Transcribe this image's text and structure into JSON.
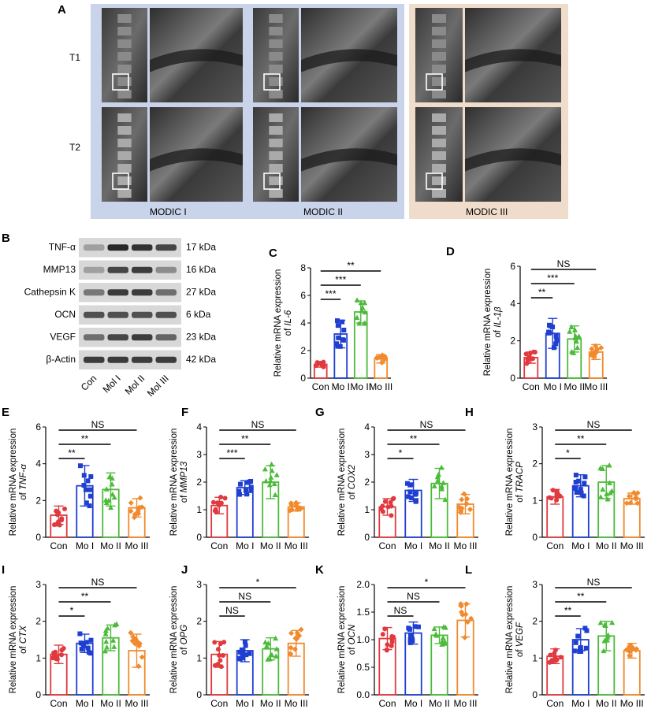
{
  "panel_a": {
    "label": "A",
    "row_labels": [
      "T1",
      "T2"
    ],
    "group_labels": [
      "MODIC I",
      "MODIC II",
      "MODIC III"
    ],
    "colors": {
      "modic_bg_blue": "#c9d3ea",
      "modic_bg_peach": "#f0dccb"
    }
  },
  "panel_b": {
    "label": "B",
    "proteins": [
      {
        "name": "TNF-α",
        "kda": "17 kDa",
        "intensity": [
          0.35,
          0.95,
          0.9,
          0.8
        ]
      },
      {
        "name": "MMP13",
        "kda": "16 kDa",
        "intensity": [
          0.35,
          0.8,
          0.85,
          0.45
        ]
      },
      {
        "name": "Cathepsin K",
        "kda": "27 kDa",
        "intensity": [
          0.55,
          0.85,
          0.85,
          0.6
        ]
      },
      {
        "name": "OCN",
        "kda": "6 kDa",
        "intensity": [
          0.75,
          0.75,
          0.75,
          0.75
        ]
      },
      {
        "name": "VEGF",
        "kda": "23 kDa",
        "intensity": [
          0.6,
          0.8,
          0.85,
          0.65
        ]
      },
      {
        "name": "β-Actin",
        "kda": "42 kDa",
        "intensity": [
          0.85,
          0.85,
          0.85,
          0.85
        ]
      }
    ],
    "lanes": [
      "Con",
      "Mol I",
      "Mol II",
      "Mol III"
    ]
  },
  "chart_data": [
    {
      "panel": "C",
      "type": "bar",
      "ylabel_top": "Relative mRNA expression",
      "ylabel_gene": "IL-6",
      "categories": [
        "Con",
        "Mo I",
        "Mo II",
        "Mo III"
      ],
      "ylim": [
        0,
        8
      ],
      "yticks": [
        "0",
        "2",
        "4",
        "6",
        "8"
      ],
      "means": [
        1.0,
        3.2,
        4.8,
        1.4
      ],
      "sd": [
        0.2,
        1.0,
        0.8,
        0.3
      ],
      "sig": [
        {
          "from": 0,
          "to": 1,
          "text": "***"
        },
        {
          "from": 0,
          "to": 2,
          "text": "***"
        },
        {
          "from": 0,
          "to": 3,
          "text": "**"
        }
      ]
    },
    {
      "panel": "D",
      "type": "bar",
      "ylabel_top": "Relative mRNA expression",
      "ylabel_gene": "IL-1β",
      "categories": [
        "Con",
        "Mo I",
        "Mo II",
        "Mo III"
      ],
      "ylim": [
        0,
        6
      ],
      "yticks": [
        "0",
        "2",
        "4",
        "6"
      ],
      "means": [
        1.1,
        2.4,
        2.1,
        1.4
      ],
      "sd": [
        0.3,
        0.8,
        0.7,
        0.4
      ],
      "sig": [
        {
          "from": 0,
          "to": 1,
          "text": "**"
        },
        {
          "from": 0,
          "to": 2,
          "text": "***"
        },
        {
          "from": 0,
          "to": 3,
          "text": "NS"
        }
      ]
    },
    {
      "panel": "E",
      "type": "bar",
      "ylabel_top": "Relative mRNA expression",
      "ylabel_gene": "TNF-α",
      "categories": [
        "Con",
        "Mo I",
        "Mo II",
        "Mo III"
      ],
      "ylim": [
        0,
        6
      ],
      "yticks": [
        "0",
        "2",
        "4",
        "6"
      ],
      "means": [
        1.2,
        2.8,
        2.6,
        1.6
      ],
      "sd": [
        0.5,
        1.1,
        0.9,
        0.5
      ],
      "sig": [
        {
          "from": 0,
          "to": 1,
          "text": "**"
        },
        {
          "from": 0,
          "to": 2,
          "text": "**"
        },
        {
          "from": 0,
          "to": 3,
          "text": "NS"
        }
      ]
    },
    {
      "panel": "F",
      "type": "bar",
      "ylabel_top": "Relative mRNA expression",
      "ylabel_gene": "MMP13",
      "categories": [
        "Con",
        "Mo I",
        "Mo II",
        "Mo III"
      ],
      "ylim": [
        0,
        4
      ],
      "yticks": [
        "0",
        "1",
        "2",
        "3",
        "4"
      ],
      "means": [
        1.15,
        1.8,
        2.0,
        1.1
      ],
      "sd": [
        0.3,
        0.25,
        0.6,
        0.15
      ],
      "sig": [
        {
          "from": 0,
          "to": 1,
          "text": "***"
        },
        {
          "from": 0,
          "to": 2,
          "text": "**"
        },
        {
          "from": 0,
          "to": 3,
          "text": "NS"
        }
      ]
    },
    {
      "panel": "G",
      "type": "bar",
      "ylabel_top": "Relative mRNA expression",
      "ylabel_gene": "COX2",
      "categories": [
        "Con",
        "Mo I",
        "Mo II",
        "Mo III"
      ],
      "ylim": [
        0,
        4
      ],
      "yticks": [
        "0",
        "1",
        "2",
        "3",
        "4"
      ],
      "means": [
        1.1,
        1.7,
        1.95,
        1.2
      ],
      "sd": [
        0.3,
        0.4,
        0.55,
        0.35
      ],
      "sig": [
        {
          "from": 0,
          "to": 1,
          "text": "*"
        },
        {
          "from": 0,
          "to": 2,
          "text": "**"
        },
        {
          "from": 0,
          "to": 3,
          "text": "NS"
        }
      ]
    },
    {
      "panel": "H",
      "type": "bar",
      "ylabel_top": "Relative mRNA expression",
      "ylabel_gene": "TRACP",
      "categories": [
        "Con",
        "Mo I",
        "Mo II",
        "Mo III"
      ],
      "ylim": [
        0,
        3
      ],
      "yticks": [
        "0",
        "1",
        "2",
        "3"
      ],
      "means": [
        1.1,
        1.4,
        1.5,
        1.05
      ],
      "sd": [
        0.2,
        0.3,
        0.45,
        0.15
      ],
      "sig": [
        {
          "from": 0,
          "to": 1,
          "text": "*"
        },
        {
          "from": 0,
          "to": 2,
          "text": "**"
        },
        {
          "from": 0,
          "to": 3,
          "text": "NS"
        }
      ]
    },
    {
      "panel": "I",
      "type": "bar",
      "ylabel_top": "Relative mRNA expression",
      "ylabel_gene": "CTX",
      "categories": [
        "Con",
        "Mo I",
        "Mo II",
        "Mo III"
      ],
      "ylim": [
        0,
        3
      ],
      "yticks": [
        "0",
        "1",
        "2",
        "3"
      ],
      "means": [
        1.1,
        1.4,
        1.55,
        1.2
      ],
      "sd": [
        0.25,
        0.25,
        0.35,
        0.45
      ],
      "sig": [
        {
          "from": 0,
          "to": 1,
          "text": "*"
        },
        {
          "from": 0,
          "to": 2,
          "text": "**"
        },
        {
          "from": 0,
          "to": 3,
          "text": "NS"
        }
      ]
    },
    {
      "panel": "J",
      "type": "bar",
      "ylabel_top": "Relative mRNA expression",
      "ylabel_gene": "OPG",
      "categories": [
        "Con",
        "Mo I",
        "Mo II",
        "Mo III"
      ],
      "ylim": [
        0,
        3
      ],
      "yticks": [
        "0",
        "1",
        "2",
        "3"
      ],
      "means": [
        1.1,
        1.2,
        1.25,
        1.4
      ],
      "sd": [
        0.35,
        0.3,
        0.3,
        0.35
      ],
      "sig": [
        {
          "from": 0,
          "to": 1,
          "text": "NS"
        },
        {
          "from": 0,
          "to": 2,
          "text": "NS"
        },
        {
          "from": 0,
          "to": 3,
          "text": "*"
        }
      ]
    },
    {
      "panel": "K",
      "type": "bar",
      "ylabel_top": "Relative mRNA expression",
      "ylabel_gene": "OCN",
      "categories": [
        "Con",
        "Mo I",
        "Mo II",
        "Mo III"
      ],
      "ylim": [
        0,
        2.0
      ],
      "yticks": [
        "0.0",
        "0.5",
        "1.0",
        "1.5",
        "2.0"
      ],
      "means": [
        1.02,
        1.12,
        1.08,
        1.35
      ],
      "sd": [
        0.2,
        0.2,
        0.15,
        0.3
      ],
      "sig": [
        {
          "from": 0,
          "to": 1,
          "text": "NS"
        },
        {
          "from": 0,
          "to": 2,
          "text": "NS"
        },
        {
          "from": 0,
          "to": 3,
          "text": "*"
        }
      ]
    },
    {
      "panel": "L",
      "type": "bar",
      "ylabel_top": "Relative mRNA expression",
      "ylabel_gene": "VEGF",
      "categories": [
        "Con",
        "Mo I",
        "Mo II",
        "Mo III"
      ],
      "ylim": [
        0,
        3
      ],
      "yticks": [
        "0",
        "1",
        "2",
        "3"
      ],
      "means": [
        1.05,
        1.5,
        1.6,
        1.2
      ],
      "sd": [
        0.2,
        0.3,
        0.4,
        0.2
      ],
      "sig": [
        {
          "from": 0,
          "to": 1,
          "text": "**"
        },
        {
          "from": 0,
          "to": 2,
          "text": "**"
        },
        {
          "from": 0,
          "to": 3,
          "text": "NS"
        }
      ]
    }
  ],
  "colors": {
    "con": "#e0393e",
    "mo1": "#1f3fd1",
    "mo2": "#4cbb3a",
    "mo3": "#f08a2c"
  }
}
